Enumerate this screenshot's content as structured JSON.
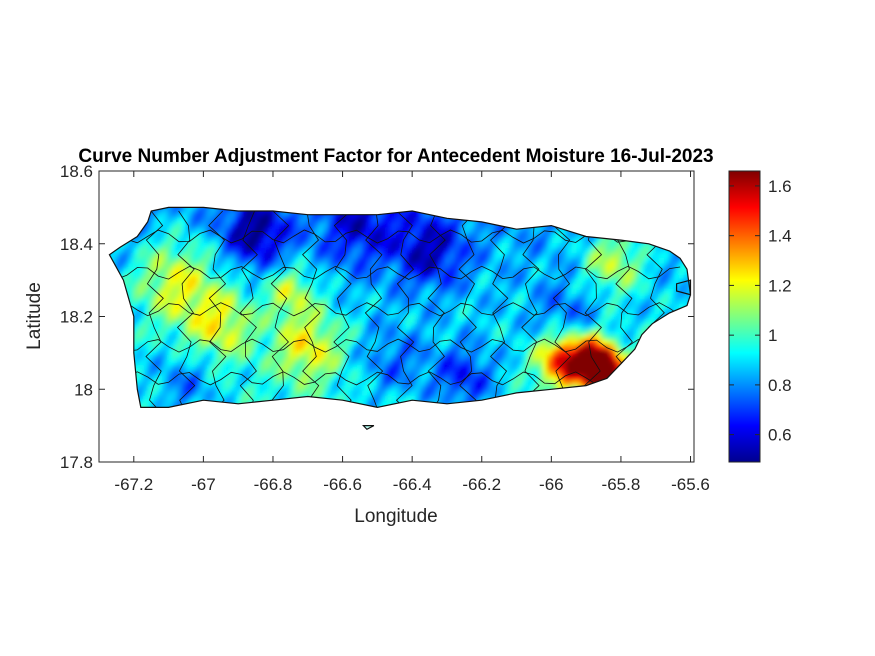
{
  "chart_data": {
    "type": "heatmap",
    "title": "Curve Number Adjustment Factor for Antecedent Moisture 16-Jul-2023",
    "xlabel": "Longitude",
    "ylabel": "Latitude",
    "xlim": [
      -67.3,
      -65.59
    ],
    "ylim": [
      17.8,
      18.6
    ],
    "x_ticks": [
      -67.2,
      -67,
      -66.8,
      -66.6,
      -66.4,
      -66.2,
      -66,
      -65.8,
      -65.6
    ],
    "x_tick_labels": [
      "-67.2",
      "-67",
      "-66.8",
      "-66.6",
      "-66.4",
      "-66.2",
      "-66",
      "-65.8",
      "-65.6"
    ],
    "y_ticks": [
      17.8,
      18,
      18.2,
      18.4,
      18.6
    ],
    "y_tick_labels": [
      "17.8",
      "18",
      "18.2",
      "18.4",
      "18.6"
    ],
    "grid": false,
    "colormap": "jet",
    "colorbar": {
      "range": [
        0.49,
        1.66
      ],
      "ticks": [
        0.6,
        0.8,
        1,
        1.2,
        1.4,
        1.6
      ],
      "tick_labels": [
        "0.6",
        "0.8",
        "1",
        "1.2",
        "1.4",
        "1.6"
      ],
      "location": "right"
    },
    "outline": [
      [
        -67.27,
        18.37
      ],
      [
        -67.24,
        18.39
      ],
      [
        -67.19,
        18.42
      ],
      [
        -67.16,
        18.46
      ],
      [
        -67.15,
        18.49
      ],
      [
        -67.1,
        18.5
      ],
      [
        -67.0,
        18.5
      ],
      [
        -66.9,
        18.49
      ],
      [
        -66.8,
        18.49
      ],
      [
        -66.7,
        18.48
      ],
      [
        -66.6,
        18.48
      ],
      [
        -66.5,
        18.48
      ],
      [
        -66.4,
        18.49
      ],
      [
        -66.3,
        18.47
      ],
      [
        -66.2,
        18.46
      ],
      [
        -66.1,
        18.44
      ],
      [
        -66.0,
        18.45
      ],
      [
        -65.9,
        18.42
      ],
      [
        -65.8,
        18.41
      ],
      [
        -65.72,
        18.4
      ],
      [
        -65.66,
        18.38
      ],
      [
        -65.63,
        18.36
      ],
      [
        -65.61,
        18.33
      ],
      [
        -65.6,
        18.26
      ],
      [
        -65.61,
        18.23
      ],
      [
        -65.66,
        18.21
      ],
      [
        -65.71,
        18.18
      ],
      [
        -65.74,
        18.15
      ],
      [
        -65.76,
        18.11
      ],
      [
        -65.8,
        18.07
      ],
      [
        -65.84,
        18.03
      ],
      [
        -65.9,
        18.01
      ],
      [
        -66.0,
        18.0
      ],
      [
        -66.1,
        17.99
      ],
      [
        -66.2,
        17.97
      ],
      [
        -66.3,
        17.96
      ],
      [
        -66.4,
        17.97
      ],
      [
        -66.5,
        17.95
      ],
      [
        -66.6,
        17.97
      ],
      [
        -66.7,
        17.98
      ],
      [
        -66.8,
        17.97
      ],
      [
        -66.9,
        17.96
      ],
      [
        -67.0,
        17.97
      ],
      [
        -67.1,
        17.95
      ],
      [
        -67.18,
        17.95
      ],
      [
        -67.19,
        18.0
      ],
      [
        -67.2,
        18.1
      ],
      [
        -67.2,
        18.2
      ],
      [
        -67.23,
        18.3
      ],
      [
        -67.27,
        18.37
      ]
    ],
    "islands": [
      [
        [
          -66.54,
          17.9
        ],
        [
          -66.52,
          17.9
        ],
        [
          -66.51,
          17.9
        ],
        [
          -66.53,
          17.89
        ],
        [
          -66.54,
          17.9
        ]
      ],
      [
        [
          -65.64,
          18.29
        ],
        [
          -65.6,
          18.3
        ],
        [
          -65.6,
          18.26
        ],
        [
          -65.64,
          18.27
        ],
        [
          -65.64,
          18.29
        ]
      ]
    ],
    "anomalies": [
      {
        "lon": -66.85,
        "lat": 18.43,
        "value": 0.55,
        "radius_deg": 0.09
      },
      {
        "lon": -66.55,
        "lat": 18.45,
        "value": 0.65,
        "radius_deg": 0.11
      },
      {
        "lon": -66.35,
        "lat": 18.38,
        "value": 0.6,
        "radius_deg": 0.1
      },
      {
        "lon": -66.25,
        "lat": 18.03,
        "value": 0.62,
        "radius_deg": 0.09
      },
      {
        "lon": -66.45,
        "lat": 18.07,
        "value": 0.72,
        "radius_deg": 0.1
      },
      {
        "lon": -67.05,
        "lat": 18.01,
        "value": 0.72,
        "radius_deg": 0.09
      },
      {
        "lon": -65.95,
        "lat": 18.2,
        "value": 0.75,
        "radius_deg": 0.1
      },
      {
        "lon": -67.08,
        "lat": 18.3,
        "value": 1.2,
        "radius_deg": 0.12
      },
      {
        "lon": -66.95,
        "lat": 18.18,
        "value": 1.18,
        "radius_deg": 0.1
      },
      {
        "lon": -66.7,
        "lat": 18.12,
        "value": 1.2,
        "radius_deg": 0.1
      },
      {
        "lon": -66.75,
        "lat": 18.27,
        "value": 1.15,
        "radius_deg": 0.07
      },
      {
        "lon": -65.82,
        "lat": 18.35,
        "value": 1.18,
        "radius_deg": 0.09
      },
      {
        "lon": -65.97,
        "lat": 18.08,
        "value": 1.45,
        "radius_deg": 0.07
      },
      {
        "lon": -65.88,
        "lat": 18.08,
        "value": 1.55,
        "radius_deg": 0.07
      },
      {
        "lon": -65.85,
        "lat": 18.05,
        "value": 1.6,
        "radius_deg": 0.05
      }
    ]
  }
}
